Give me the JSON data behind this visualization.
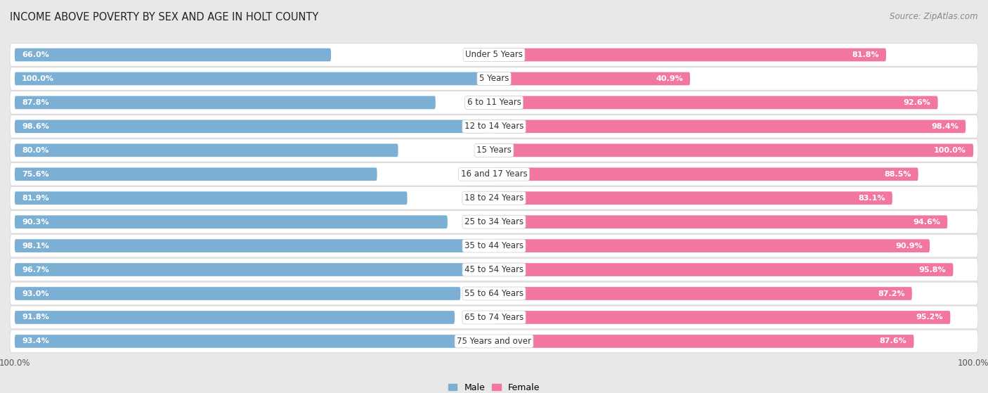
{
  "title": "INCOME ABOVE POVERTY BY SEX AND AGE IN HOLT COUNTY",
  "source": "Source: ZipAtlas.com",
  "categories": [
    "Under 5 Years",
    "5 Years",
    "6 to 11 Years",
    "12 to 14 Years",
    "15 Years",
    "16 and 17 Years",
    "18 to 24 Years",
    "25 to 34 Years",
    "35 to 44 Years",
    "45 to 54 Years",
    "55 to 64 Years",
    "65 to 74 Years",
    "75 Years and over"
  ],
  "male_values": [
    66.0,
    100.0,
    87.8,
    98.6,
    80.0,
    75.6,
    81.9,
    90.3,
    98.1,
    96.7,
    93.0,
    91.8,
    93.4
  ],
  "female_values": [
    81.8,
    40.9,
    92.6,
    98.4,
    100.0,
    88.5,
    83.1,
    94.6,
    90.9,
    95.8,
    87.2,
    95.2,
    87.6
  ],
  "male_color": "#7bafd4",
  "female_color": "#f177a0",
  "male_label": "Male",
  "female_label": "Female",
  "background_color": "#e8e8e8",
  "row_bg_color": "#f0f0f0",
  "row_border_color": "#d0d0d0",
  "title_fontsize": 10.5,
  "label_fontsize": 8.5,
  "value_fontsize": 8,
  "max_value": 100.0,
  "legend_fontsize": 9,
  "source_fontsize": 8.5
}
